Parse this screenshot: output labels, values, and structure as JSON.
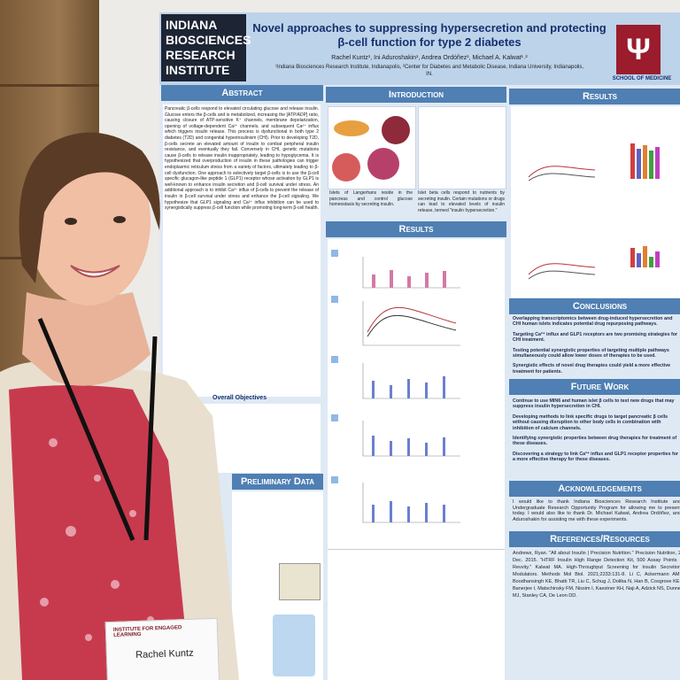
{
  "poster": {
    "institute_logo": [
      "INDIANA",
      "BIOSCIENCES",
      "RESEARCH",
      "INSTITUTE"
    ],
    "title": "Novel approaches to suppressing hypersecretion and protecting β-cell function for type 2 diabetes",
    "authors": "Rachel Kuntz¹, Ini Aduroshakin¹, Andrea Ordóñez¹, Michael A. Kalwat¹˒²",
    "affiliations": "¹Indiana Biosciences Research Institute, Indianapolis, ²Center for Diabetes and Metabolic Disease, Indiana University, Indianapolis, IN.",
    "school": "SCHOOL OF MEDICINE",
    "abstract": {
      "heading": "Abstract",
      "text": "Pancreatic β-cells respond to elevated circulating glucose and release insulin. Glucose enters the β-cells and is metabolized, increasing the [ATP/ADP] ratio, causing closure of ATP-sensitive K⁺ channels, membrane depolarization, opening of voltage-dependent Ca²⁺ channels, and subsequent Ca²⁺ influx which triggers insulin release. This process is dysfunctional in both type 2 diabetes (T2D) and congenital hyperinsulinism (CHI). Prior to developing T2D, β-cells secrete an elevated amount of insulin to combat peripheral insulin resistance, and eventually they fail. Conversely in CHI, genetic mutations cause β-cells to release insulin inappropriately, leading to hypoglycemia. It is hypothesized that overproduction of insulin in these pathologies can trigger endoplasmic reticulum stress from a variety of factors, ultimately leading to β-cell dysfunction. One approach to selectively target β-cells is to use the β-cell specific glucagon-like peptide 1 (GLP1) receptor whose activation by GLP1 is well-known to enhance insulin secretion and β-cell survival under stress. An additional approach is to inhibit Ca²⁺ influx of β-cells to prevent the release of insulin in β-cell survival under stress and enhance the β-cell signaling. We hypothesize that GLP1 signaling and Ca²⁺ influx inhibition can be used to synergistically suppress β-cell function while promoting long-term β-cell health."
    },
    "objectives": {
      "heading": "Overall Objectives"
    },
    "preliminary": {
      "heading": "Preliminary Data"
    },
    "introduction": {
      "heading": "Introduction",
      "captions": [
        "Islets of Langerhans reside in the pancreas and control glucose homeostasis by secreting insulin.",
        "Islet beta cells respond to nutrients by secreting insulin. Certain mutations or drugs can lead to elevated levels of insulin release, termed \"insulin hypersecretion.\""
      ]
    },
    "results_middle": {
      "heading": "Results"
    },
    "results_right": {
      "heading": "Results"
    },
    "conclusions": {
      "heading": "Conclusions",
      "items": [
        "Overlapping transcriptomics between drug-induced hypersecretion and CHI human islets indicates potential drug repurposing pathways.",
        "Targeting Ca²⁺ influx and GLP1 receptors are two promising strategies for CHI treatment.",
        "Testing potential synergistic properties of targeting multiple pathways simultaneously could allow lower doses of therapies to be used.",
        "Synergistic effects of novel drug therapies could yield a more effective treatment for patients."
      ]
    },
    "future_work": {
      "heading": "Future Work",
      "items": [
        "Continue to use MIN6 and human islet β cells to test new drugs that may suppress insulin hypersecretion in CHI.",
        "Developing methods to link specific drugs to target pancreatic β cells without causing disruption to other body cells in combination with inhibition of calcium channels.",
        "Identifying synergistic properties between drug therapies for treatment of these diseases.",
        "Discovering a strategy to link Ca²⁺ influx and GLP1 receptor properties for a more effective therapy for these diseases."
      ]
    },
    "acknowledgements": {
      "heading": "Acknowledgements",
      "text": "I would like to thank Indiana Biosciences Research Institute and Undergraduate Research Opportunity Program for allowing me to present today. I would also like to thank Dr. Michael Kalwat, Andrea Ordóñez, and Aduroshakin for assisting me with these experiments."
    },
    "references": {
      "heading": "References/Resources",
      "text": "Andrews, Ryan. \"All about Insulin | Precision Nutrition.\" Precision Nutrition, 2 Dec. 2015. \"HTRF Insulin High Range Detection Kit, 500 Assay Points | Revvity.\" Kalwat MA. High-Throughput Screening for Insulin Secretion Modulators. Methods Mol Biol. 2021;2233:131-8. Li C, Ackermann AM, Boodhansingh KE, Bhatti TR, Liu C, Schug J, Doliba N, Han B, Cosgrove KE, Banerjee I, Matschinsky FM, Nissim I, Kaestner KH, Naji A, Adzick NS, Dunne MJ, Stanley CA, De Leon DD."
    }
  },
  "badge": {
    "organization": "INSTITUTE FOR ENGAGED LEARNING",
    "name": "Rachel Kuntz"
  }
}
